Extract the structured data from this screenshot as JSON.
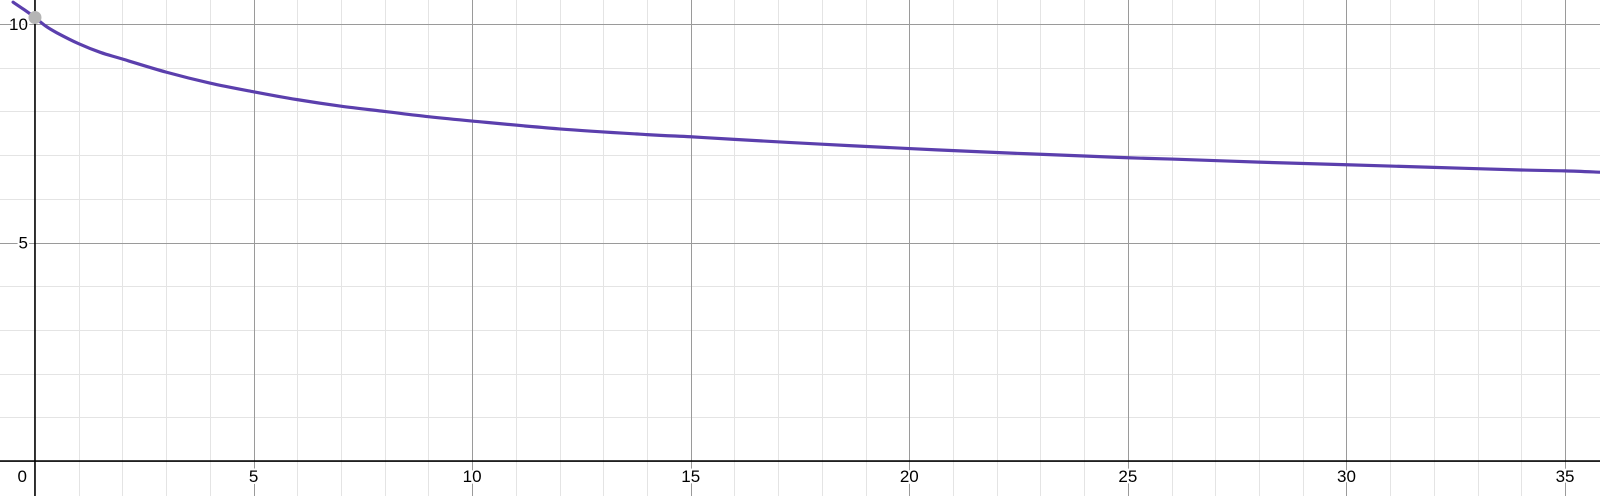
{
  "chart_data": {
    "type": "line",
    "title": "",
    "xlabel": "",
    "ylabel": "",
    "xlim": [
      -0.8,
      35.8
    ],
    "ylim": [
      -0.8,
      10.55
    ],
    "x_ticks": [
      0,
      5,
      10,
      15,
      20,
      25,
      30,
      35
    ],
    "x_tick_labels": [
      "0",
      "5",
      "10",
      "15",
      "20",
      "25",
      "30",
      "35"
    ],
    "y_ticks": [
      5,
      10
    ],
    "y_tick_labels": [
      "5",
      "10"
    ],
    "major_grid_step": 5,
    "minor_grid_step": 1,
    "grid": true,
    "legend": "none",
    "series": [
      {
        "color": "#5b3fad",
        "x": [
          -0.5,
          -0.25,
          0,
          0.25,
          0.5,
          1,
          1.5,
          2,
          3,
          4,
          5,
          6,
          7,
          8,
          9,
          10,
          12,
          14,
          15,
          16,
          18,
          20,
          22,
          24,
          25,
          26,
          28,
          30,
          32,
          34,
          35,
          35.8
        ],
        "y": [
          10.5,
          10.33,
          10.15,
          9.95,
          9.8,
          9.55,
          9.35,
          9.2,
          8.9,
          8.65,
          8.45,
          8.27,
          8.12,
          8.0,
          7.88,
          7.78,
          7.6,
          7.47,
          7.42,
          7.36,
          7.25,
          7.15,
          7.06,
          6.98,
          6.94,
          6.91,
          6.84,
          6.78,
          6.72,
          6.66,
          6.64,
          6.61
        ]
      }
    ],
    "points": [
      {
        "x": 0,
        "y": 10.15,
        "color": "#b5b5b5"
      }
    ]
  }
}
